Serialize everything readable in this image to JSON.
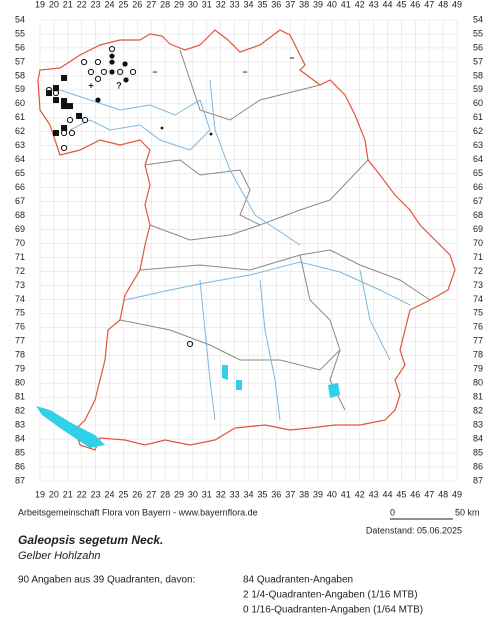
{
  "map": {
    "columns": [
      19,
      20,
      21,
      22,
      23,
      24,
      25,
      26,
      27,
      28,
      29,
      30,
      31,
      32,
      33,
      34,
      35,
      36,
      37,
      38,
      39,
      40,
      41,
      42,
      43,
      44,
      45,
      46,
      47,
      48,
      49
    ],
    "rows": [
      54,
      55,
      56,
      57,
      58,
      59,
      60,
      61,
      62,
      63,
      64,
      65,
      66,
      67,
      68,
      69,
      70,
      71,
      72,
      73,
      74,
      75,
      76,
      77,
      78,
      79,
      80,
      81,
      82,
      83,
      84,
      85,
      86,
      87
    ],
    "records": [
      {
        "col": 24.18,
        "row": 56.08,
        "symbol": "open-circle"
      },
      {
        "col": 22.17,
        "row": 57.01,
        "symbol": "open-circle"
      },
      {
        "col": 23.17,
        "row": 57.01,
        "symbol": "open-circle"
      },
      {
        "col": 22.67,
        "row": 57.72,
        "symbol": "open-circle"
      },
      {
        "col": 23.6,
        "row": 57.72,
        "symbol": "open-circle"
      },
      {
        "col": 24.76,
        "row": 57.72,
        "symbol": "open-circle"
      },
      {
        "col": 25.69,
        "row": 57.72,
        "symbol": "open-circle"
      },
      {
        "col": 23.17,
        "row": 58.22,
        "symbol": "open-circle"
      },
      {
        "col": 19.65,
        "row": 59.01,
        "symbol": "open-circle"
      },
      {
        "col": 20.15,
        "row": 59.23,
        "symbol": "open-circle"
      },
      {
        "col": 21.16,
        "row": 61.16,
        "symbol": "open-circle"
      },
      {
        "col": 22.24,
        "row": 61.16,
        "symbol": "open-circle"
      },
      {
        "col": 20.73,
        "row": 62.09,
        "symbol": "open-circle"
      },
      {
        "col": 21.3,
        "row": 62.09,
        "symbol": "open-circle"
      },
      {
        "col": 20.73,
        "row": 63.16,
        "symbol": "open-circle"
      },
      {
        "col": 29.79,
        "row": 77.19,
        "symbol": "open-circle"
      },
      {
        "col": 24.18,
        "row": 56.58,
        "symbol": "filled-circle"
      },
      {
        "col": 24.18,
        "row": 57.01,
        "symbol": "filled-circle"
      },
      {
        "col": 25.12,
        "row": 57.15,
        "symbol": "filled-circle"
      },
      {
        "col": 24.18,
        "row": 57.72,
        "symbol": "filled-circle"
      },
      {
        "col": 25.19,
        "row": 58.29,
        "symbol": "filled-circle"
      },
      {
        "col": 23.17,
        "row": 59.73,
        "symbol": "filled-circle"
      },
      {
        "col": 27.78,
        "row": 61.73,
        "symbol": "small-dot"
      },
      {
        "col": 31.3,
        "row": 62.16,
        "symbol": "small-dot"
      },
      {
        "col": 20.73,
        "row": 58.15,
        "symbol": "filled-square"
      },
      {
        "col": 19.65,
        "row": 59.23,
        "symbol": "filled-square"
      },
      {
        "col": 20.15,
        "row": 58.87,
        "symbol": "filled-square"
      },
      {
        "col": 20.15,
        "row": 59.73,
        "symbol": "filled-square"
      },
      {
        "col": 20.73,
        "row": 59.8,
        "symbol": "filled-square"
      },
      {
        "col": 20.73,
        "row": 60.16,
        "symbol": "filled-square"
      },
      {
        "col": 21.16,
        "row": 60.16,
        "symbol": "filled-square"
      },
      {
        "col": 21.81,
        "row": 60.87,
        "symbol": "filled-square"
      },
      {
        "col": 20.73,
        "row": 61.73,
        "symbol": "filled-square"
      },
      {
        "col": 20.15,
        "row": 62.09,
        "symbol": "filled-square"
      },
      {
        "col": 27.27,
        "row": 57.72,
        "label": "–"
      },
      {
        "col": 33.75,
        "row": 57.72,
        "label": "–"
      },
      {
        "col": 37.13,
        "row": 56.72,
        "label": "–"
      },
      {
        "col": 22.67,
        "row": 58.72,
        "label": "+"
      },
      {
        "col": 24.68,
        "row": 58.72,
        "label": "?"
      }
    ]
  },
  "footer": {
    "credit": "Arbeitsgemeinschaft Flora von Bayern - www.bayernflora.de",
    "scale_start": "0",
    "scale_end": "50 km",
    "date": "Datenstand: 05.06.2025",
    "species": "Galeopsis segetum Neck.",
    "common_name": "Gelber Hohlzahn",
    "summary": "90 Angaben aus 39 Quadranten, davon:",
    "details": [
      "84 Quadranten-Angaben",
      "2 1/4-Quadranten-Angaben (1/16 MTB)",
      "0 1/16-Quadranten-Angaben (1/64 MTB)"
    ]
  }
}
